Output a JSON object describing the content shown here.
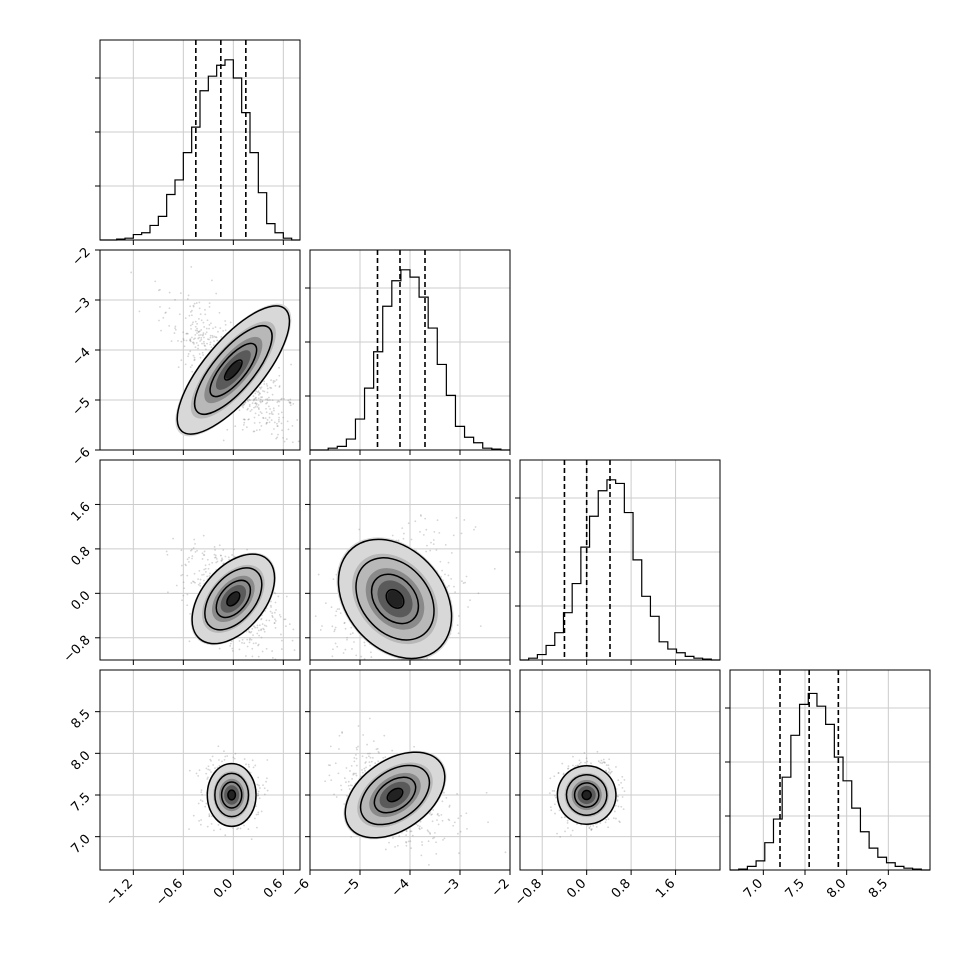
{
  "chart_data": {
    "type": "corner",
    "parameters": [
      {
        "range": [
          -1.6,
          0.8
        ],
        "ticks": [
          -1.2,
          -0.6,
          0.0,
          0.6
        ],
        "tick_labels": [
          "−1.2",
          "−0.6",
          "0.0",
          "0.6"
        ],
        "quantiles": [
          -0.45,
          -0.15,
          0.15
        ]
      },
      {
        "range": [
          -6.0,
          -2.0
        ],
        "ticks": [
          -6,
          -5,
          -4,
          -3,
          -2
        ],
        "tick_labels": [
          "−6",
          "−5",
          "−4",
          "−3",
          "−2"
        ],
        "quantiles": [
          -4.65,
          -4.2,
          -3.7
        ]
      },
      {
        "range": [
          -1.2,
          2.4
        ],
        "ticks": [
          -0.8,
          0.0,
          0.8,
          1.6
        ],
        "tick_labels": [
          "−0.8",
          "0.0",
          "0.8",
          "1.6"
        ],
        "quantiles": [
          -0.4,
          0.0,
          0.42
        ]
      },
      {
        "range": [
          6.6,
          9.0
        ],
        "ticks": [
          7.0,
          7.5,
          8.0,
          8.5
        ],
        "tick_labels": [
          "7.0",
          "7.5",
          "8.0",
          "8.5"
        ],
        "quantiles": [
          7.2,
          7.55,
          7.9
        ]
      }
    ],
    "histograms": [
      [
        0.0,
        0.0,
        0.005,
        0.01,
        0.03,
        0.04,
        0.08,
        0.13,
        0.25,
        0.33,
        0.48,
        0.62,
        0.82,
        0.9,
        0.96,
        0.99,
        0.89,
        0.7,
        0.48,
        0.26,
        0.09,
        0.04,
        0.01,
        0.0
      ],
      [
        0.0,
        0.0,
        0.01,
        0.02,
        0.06,
        0.17,
        0.34,
        0.54,
        0.79,
        0.93,
        0.99,
        0.95,
        0.84,
        0.67,
        0.47,
        0.3,
        0.13,
        0.07,
        0.04,
        0.01,
        0.005,
        0.0
      ],
      [
        0.0,
        0.01,
        0.03,
        0.08,
        0.15,
        0.26,
        0.42,
        0.62,
        0.79,
        0.93,
        0.99,
        0.97,
        0.81,
        0.55,
        0.35,
        0.24,
        0.1,
        0.06,
        0.04,
        0.02,
        0.01,
        0.005,
        0.0
      ],
      [
        0.0,
        0.005,
        0.02,
        0.05,
        0.15,
        0.28,
        0.51,
        0.74,
        0.91,
        0.97,
        0.9,
        0.8,
        0.62,
        0.49,
        0.34,
        0.21,
        0.12,
        0.07,
        0.04,
        0.02,
        0.01,
        0.005,
        0.0
      ]
    ],
    "pairs": [
      {
        "row": 1,
        "col": 0,
        "center": [
          0.0,
          -4.4
        ],
        "rx": 0.42,
        "ry": 1.15,
        "angle": -40
      },
      {
        "row": 2,
        "col": 0,
        "center": [
          0.0,
          -0.1
        ],
        "rx": 0.45,
        "ry": 0.75,
        "angle": -40
      },
      {
        "row": 3,
        "col": 0,
        "center": [
          -0.02,
          7.5
        ],
        "rx": 0.35,
        "ry": 0.45,
        "angle": 0
      },
      {
        "row": 2,
        "col": 1,
        "center": [
          -4.3,
          -0.1
        ],
        "rx": 0.7,
        "ry": 0.95,
        "angle": 40
      },
      {
        "row": 3,
        "col": 1,
        "center": [
          -4.3,
          7.5
        ],
        "rx": 0.8,
        "ry": 0.5,
        "angle": 35
      },
      {
        "row": 3,
        "col": 2,
        "center": [
          0.0,
          7.5
        ],
        "rx": 0.42,
        "ry": 0.42,
        "angle": 10
      }
    ],
    "grid": true
  }
}
